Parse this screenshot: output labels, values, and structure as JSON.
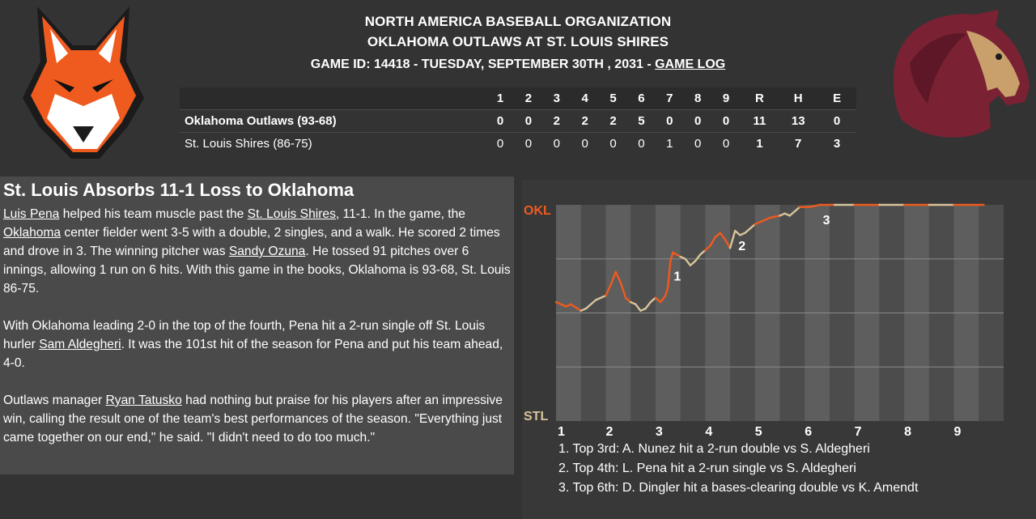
{
  "header": {
    "organization": "NORTH AMERICA BASEBALL ORGANIZATION",
    "matchup": "OKLAHOMA OUTLAWS AT ST. LOUIS SHIRES",
    "game_id_text": "GAME ID: 14418 - TUESDAY, SEPTEMBER 30TH , 2031 - ",
    "game_log_link": "GAME LOG"
  },
  "logos": {
    "away": "fox-logo",
    "home": "horse-logo",
    "colors": {
      "fox_orange": "#ef5a1f",
      "horse_maroon": "#7a2233",
      "horse_tan": "#c9a06b"
    }
  },
  "linescore": {
    "headers": [
      "1",
      "2",
      "3",
      "4",
      "5",
      "6",
      "7",
      "8",
      "9",
      "R",
      "H",
      "E"
    ],
    "rows": [
      {
        "team": "Oklahoma Outlaws (93-68)",
        "cells": [
          "0",
          "0",
          "2",
          "2",
          "2",
          "5",
          "0",
          "0",
          "0",
          "11",
          "13",
          "0"
        ]
      },
      {
        "team": "St. Louis Shires (86-75)",
        "cells": [
          "0",
          "0",
          "0",
          "0",
          "0",
          "0",
          "1",
          "0",
          "0",
          "1",
          "7",
          "3"
        ]
      }
    ]
  },
  "story": {
    "headline": "St. Louis Absorbs 11-1 Loss to Oklahoma",
    "p1": [
      {
        "text": "Luis Pena",
        "link": true
      },
      {
        "text": " helped his team muscle past the ",
        "link": false
      },
      {
        "text": "St. Louis Shires",
        "link": true
      },
      {
        "text": ", 11-1. In the game, the ",
        "link": false
      },
      {
        "text": "Oklahoma",
        "link": true
      },
      {
        "text": " center fielder went 3-5 with a double, 2 singles, and a walk. He scored 2 times and drove in 3. The winning pitcher was ",
        "link": false
      },
      {
        "text": "Sandy Ozuna",
        "link": true
      },
      {
        "text": ". He tossed 91 pitches over 6 innings, allowing 1 run on 6 hits. With this game in the books, Oklahoma is 93-68, St. Louis 86-75.",
        "link": false
      }
    ],
    "p2": [
      {
        "text": "With Oklahoma leading 2-0 in the top of the fourth, Pena hit a 2-run single off St. Louis hurler ",
        "link": false
      },
      {
        "text": "Sam Aldegheri",
        "link": true
      },
      {
        "text": ". It was the 101st hit of the season for Pena and put his team ahead, 4-0.",
        "link": false
      }
    ],
    "p3": [
      {
        "text": "Outlaws manager ",
        "link": false
      },
      {
        "text": "Ryan Tatusko",
        "link": true
      },
      {
        "text": " had nothing but praise for his players after an impressive win, calling the result one of the team's best performances of the season. \"Everything just came together on our end,\" he said. \"I didn't need to do too much.\"",
        "link": false
      }
    ]
  },
  "chart_data": {
    "type": "line",
    "top_label": "OKL",
    "bottom_label": "STL",
    "innings": [
      "1",
      "2",
      "3",
      "4",
      "5",
      "6",
      "7",
      "8",
      "9"
    ],
    "ylim": [
      0,
      1
    ],
    "colors": {
      "top_half": "#ef5a1f",
      "bottom_half": "#d8c49a",
      "label_okl": "#ef5a1f",
      "label_stl": "#d8c49a"
    },
    "points": [
      [
        0.0,
        0.55
      ],
      [
        0.2,
        0.53
      ],
      [
        0.3,
        0.54
      ],
      [
        0.5,
        0.51
      ],
      [
        0.6,
        0.52
      ],
      [
        0.8,
        0.56
      ],
      [
        1.0,
        0.58
      ],
      [
        1.1,
        0.63
      ],
      [
        1.2,
        0.69
      ],
      [
        1.3,
        0.64
      ],
      [
        1.4,
        0.57
      ],
      [
        1.5,
        0.55
      ],
      [
        1.6,
        0.54
      ],
      [
        1.7,
        0.51
      ],
      [
        1.8,
        0.52
      ],
      [
        1.9,
        0.55
      ],
      [
        2.0,
        0.57
      ],
      [
        2.1,
        0.55
      ],
      [
        2.2,
        0.58
      ],
      [
        2.25,
        0.62
      ],
      [
        2.3,
        0.74
      ],
      [
        2.35,
        0.78
      ],
      [
        2.5,
        0.76
      ],
      [
        2.6,
        0.75
      ],
      [
        2.7,
        0.72
      ],
      [
        2.8,
        0.74
      ],
      [
        2.9,
        0.77
      ],
      [
        3.0,
        0.79
      ],
      [
        3.1,
        0.81
      ],
      [
        3.2,
        0.85
      ],
      [
        3.3,
        0.87
      ],
      [
        3.4,
        0.84
      ],
      [
        3.5,
        0.8
      ],
      [
        3.6,
        0.88
      ],
      [
        3.7,
        0.86
      ],
      [
        3.8,
        0.87
      ],
      [
        3.9,
        0.89
      ],
      [
        4.0,
        0.91
      ],
      [
        4.2,
        0.93
      ],
      [
        4.3,
        0.94
      ],
      [
        4.5,
        0.95
      ],
      [
        4.6,
        0.96
      ],
      [
        4.7,
        0.95
      ],
      [
        4.8,
        0.97
      ],
      [
        4.9,
        0.99
      ],
      [
        5.1,
        0.99
      ],
      [
        5.3,
        1.0
      ],
      [
        5.6,
        1.0
      ],
      [
        6.0,
        1.0
      ],
      [
        6.5,
        1.0
      ],
      [
        7.0,
        1.0
      ],
      [
        7.5,
        1.0
      ],
      [
        8.0,
        1.0
      ],
      [
        8.6,
        1.0
      ]
    ],
    "markers": [
      {
        "label": "1",
        "x": 2.3,
        "y": 0.74
      },
      {
        "label": "2",
        "x": 3.6,
        "y": 0.88
      },
      {
        "label": "3",
        "x": 5.3,
        "y": 1.0
      }
    ],
    "notes": [
      "1. Top 3rd: A. Nunez hit a 2-run double vs S. Aldegheri",
      "2. Top 4th: L. Pena hit a 2-run single vs S. Aldegheri",
      "3. Top 6th: D. Dingler hit a bases-clearing double vs K. Amendt"
    ]
  }
}
